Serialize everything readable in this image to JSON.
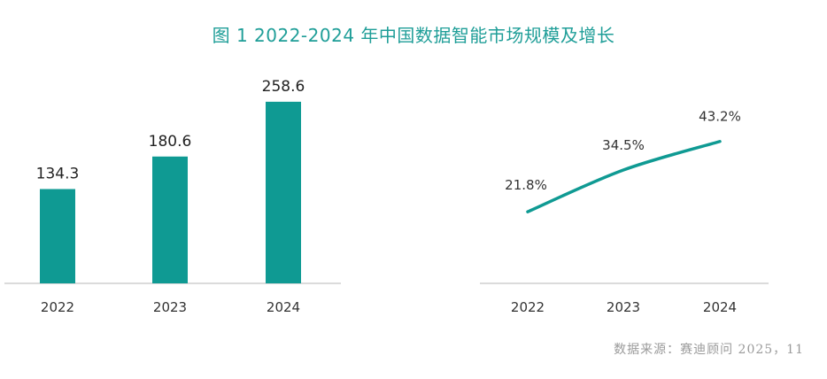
{
  "title": "图 1   2022-2024 年中国数据智能市场规模及增长",
  "colors": {
    "accent": "#0f9a93",
    "title": "#1f9e98",
    "axis": "#cfcfcf",
    "text": "#222222",
    "source": "#9a9a9a"
  },
  "chart_data": [
    {
      "type": "bar",
      "categories": [
        "2022",
        "2023",
        "2024"
      ],
      "values": [
        134.3,
        180.6,
        258.6
      ],
      "data_labels": [
        "134.3",
        "180.6",
        "258.6"
      ],
      "ylim": [
        0,
        290
      ],
      "grid": false,
      "legend": "none"
    },
    {
      "type": "line",
      "categories": [
        "2022",
        "2023",
        "2024"
      ],
      "values": [
        21.8,
        34.5,
        43.2
      ],
      "data_labels": [
        "21.8%",
        "34.5%",
        "43.2%"
      ],
      "ylim": [
        0,
        62
      ],
      "grid": false,
      "legend": "none"
    }
  ],
  "source": "数据来源：赛迪顾问  2025，11"
}
